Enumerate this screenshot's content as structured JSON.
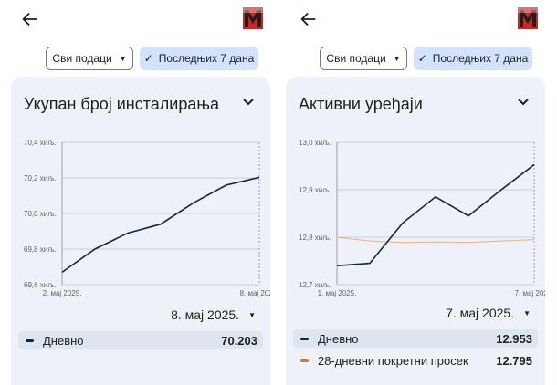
{
  "colors": {
    "accent": "#0b2a4a",
    "secondary": "#e8a87c",
    "chip_selected": "#d3e3fd",
    "card_bg": "#eef2f8",
    "logo_red": "#c62828"
  },
  "icons": {
    "back": "arrow-left-icon",
    "logo": "app-logo-m",
    "dropdown": "caret-down-icon",
    "check": "check-icon",
    "expand": "chevron-down-icon"
  },
  "left": {
    "filter_all": "Сви подаци",
    "filter_week": "Последњих 7 дана",
    "title": "Укупан број инсталирања",
    "selected_date": "8. мај 2025.",
    "legend": [
      {
        "label": "Дневно",
        "value": "70.203",
        "color": "#0b2a4a"
      }
    ],
    "chart_data": {
      "type": "line",
      "x": [
        "2. мај 2025.",
        "3. мај 2025.",
        "4. мај 2025.",
        "5. мај 2025.",
        "6. мај 2025.",
        "7. мај 2025.",
        "8. мај 2025."
      ],
      "x_tick_labels": [
        "2. мај 2025.",
        "8. мај 2025."
      ],
      "y_ticks": [
        "70,4 хиљ.",
        "70,2 хиљ.",
        "70,0 хиљ.",
        "69,8 хиљ.",
        "69,6 хиљ."
      ],
      "ylim": [
        69.6,
        70.4
      ],
      "series": [
        {
          "name": "Дневно",
          "values": [
            69.67,
            69.8,
            69.89,
            69.94,
            70.06,
            70.16,
            70.203
          ]
        }
      ],
      "grid": true
    }
  },
  "right": {
    "filter_all": "Сви подаци",
    "filter_week": "Последњих 7 дана",
    "title": "Активни уређаји",
    "selected_date": "7. мај 2025.",
    "legend": [
      {
        "label": "Дневно",
        "value": "12.953",
        "color": "#0b2a4a"
      },
      {
        "label": "28-дневни покретни просек",
        "value": "12.795",
        "color": "#e8702a"
      }
    ],
    "chart_data": {
      "type": "line",
      "x": [
        "1. мај 2025.",
        "2. мај 2025.",
        "3. мај 2025.",
        "4. мај 2025.",
        "5. мај 2025.",
        "6. мај 2025.",
        "7. мај 2025."
      ],
      "x_tick_labels": [
        "1. мај 2025.",
        "7. мај 2025."
      ],
      "y_ticks": [
        "13,0 хиљ.",
        "12,9 хиљ.",
        "12,8 хиљ.",
        "12,7 хиљ."
      ],
      "ylim": [
        12.7,
        13.0
      ],
      "series": [
        {
          "name": "Дневно",
          "values": [
            12.74,
            12.745,
            12.83,
            12.885,
            12.845,
            12.9,
            12.953
          ]
        },
        {
          "name": "28-дневни покретни просек",
          "values": [
            12.8,
            12.792,
            12.789,
            12.79,
            12.789,
            12.792,
            12.795
          ]
        }
      ],
      "grid": true
    }
  }
}
